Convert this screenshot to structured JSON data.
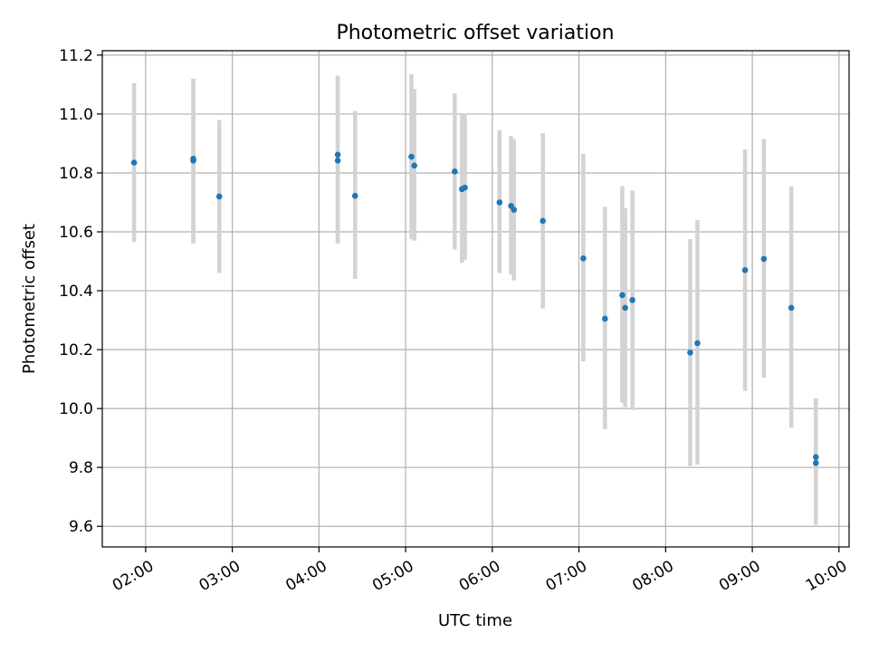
{
  "chart_data": {
    "type": "scatter",
    "title": "Photometric offset variation",
    "xlabel": "UTC time",
    "ylabel": "Photometric offset",
    "xlim": [
      "01:30",
      "10:07"
    ],
    "ylim": [
      9.53,
      11.215
    ],
    "grid": true,
    "x_ticks": [
      "02:00",
      "03:00",
      "04:00",
      "05:00",
      "06:00",
      "07:00",
      "08:00",
      "09:00",
      "10:00"
    ],
    "y_ticks": [
      9.6,
      9.8,
      10.0,
      10.2,
      10.4,
      10.6,
      10.8,
      11.0,
      11.2
    ],
    "y_tick_labels": [
      "9.6",
      "9.8",
      "10.0",
      "10.2",
      "10.4",
      "10.6",
      "10.8",
      "11.0",
      "11.2"
    ],
    "colors": {
      "points": "#1f77b4",
      "error_bars": "#d3d3d3",
      "grid": "#b0b0b0"
    },
    "series": [
      {
        "points": [
          {
            "t": "01:52",
            "y": 10.835,
            "low": 10.565,
            "high": 11.105
          },
          {
            "t": "02:33",
            "y": 10.848,
            "low": 10.56,
            "high": 11.12
          },
          {
            "t": "02:33",
            "y": 10.842,
            "low": 10.56,
            "high": 11.12
          },
          {
            "t": "02:51",
            "y": 10.72,
            "low": 10.46,
            "high": 10.98
          },
          {
            "t": "04:13",
            "y": 10.862,
            "low": 10.56,
            "high": 11.13
          },
          {
            "t": "04:13",
            "y": 10.842,
            "low": 10.56,
            "high": 11.125
          },
          {
            "t": "04:25",
            "y": 10.722,
            "low": 10.44,
            "high": 11.01
          },
          {
            "t": "05:04",
            "y": 10.855,
            "low": 10.575,
            "high": 11.135
          },
          {
            "t": "05:06",
            "y": 10.825,
            "low": 10.57,
            "high": 11.085
          },
          {
            "t": "05:34",
            "y": 10.805,
            "low": 10.54,
            "high": 11.07
          },
          {
            "t": "05:39",
            "y": 10.745,
            "low": 10.495,
            "high": 11.0
          },
          {
            "t": "05:41",
            "y": 10.75,
            "low": 10.505,
            "high": 11.0
          },
          {
            "t": "06:05",
            "y": 10.7,
            "low": 10.46,
            "high": 10.945
          },
          {
            "t": "06:13",
            "y": 10.688,
            "low": 10.455,
            "high": 10.925
          },
          {
            "t": "06:15",
            "y": 10.675,
            "low": 10.435,
            "high": 10.915
          },
          {
            "t": "06:35",
            "y": 10.637,
            "low": 10.34,
            "high": 10.935
          },
          {
            "t": "07:03",
            "y": 10.51,
            "low": 10.16,
            "high": 10.865
          },
          {
            "t": "07:18",
            "y": 10.305,
            "low": 9.93,
            "high": 10.685
          },
          {
            "t": "07:30",
            "y": 10.385,
            "low": 10.02,
            "high": 10.755
          },
          {
            "t": "07:32",
            "y": 10.342,
            "low": 10.005,
            "high": 10.68
          },
          {
            "t": "07:37",
            "y": 10.368,
            "low": 9.995,
            "high": 10.74
          },
          {
            "t": "08:17",
            "y": 10.19,
            "low": 9.805,
            "high": 10.575
          },
          {
            "t": "08:22",
            "y": 10.222,
            "low": 9.81,
            "high": 10.64
          },
          {
            "t": "08:55",
            "y": 10.47,
            "low": 10.06,
            "high": 10.88
          },
          {
            "t": "09:08",
            "y": 10.508,
            "low": 10.105,
            "high": 10.915
          },
          {
            "t": "09:27",
            "y": 10.342,
            "low": 9.935,
            "high": 10.755
          },
          {
            "t": "09:44",
            "y": 9.835,
            "low": 9.64,
            "high": 10.035
          },
          {
            "t": "09:44",
            "y": 9.815,
            "low": 9.605,
            "high": 10.03
          }
        ]
      }
    ]
  }
}
